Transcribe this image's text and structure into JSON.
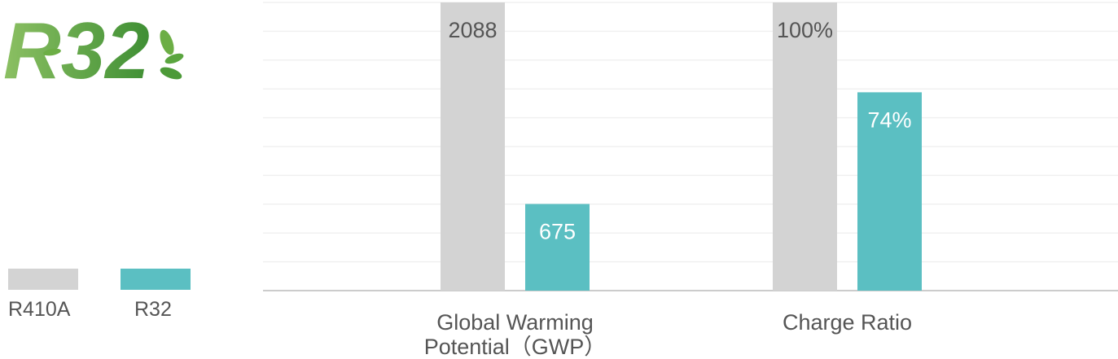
{
  "logo": {
    "text": "R32",
    "color": "#5aa53f"
  },
  "chart_data": {
    "type": "bar",
    "categories": [
      "Global Warming Potential（GWP）",
      "Charge Ratio"
    ],
    "category_lines": [
      [
        "Global Warming",
        "Potential（GWP）"
      ],
      [
        "Charge Ratio"
      ]
    ],
    "series": [
      {
        "name": "R410A",
        "color": "#d3d3d3",
        "values": [
          2088,
          100
        ],
        "labels": [
          "2088",
          "100%"
        ],
        "label_color": "#555555"
      },
      {
        "name": "R32",
        "color": "#5bbfc2",
        "values": [
          675,
          74
        ],
        "labels": [
          "675",
          "74%"
        ],
        "label_color": "#ffffff"
      }
    ],
    "normalization": "each category scaled to R410A value",
    "grid": true,
    "legend_position": "left"
  }
}
